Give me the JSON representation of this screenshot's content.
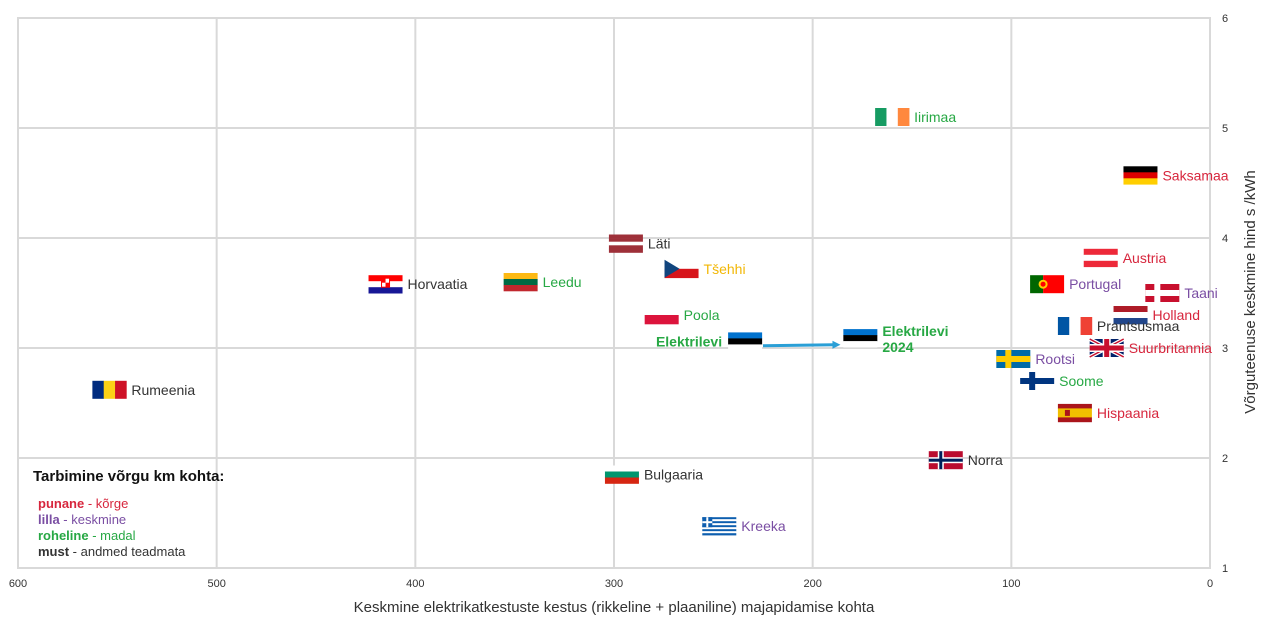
{
  "chart_data": {
    "type": "scatter",
    "title": "",
    "xlabel": "Keskmine elektrikatkestuste kestus (rikkeline + plaaniline) majapidamise kohta",
    "ylabel": "Võrguteenuse keskmine hind s /kWh",
    "xlim": [
      600,
      0
    ],
    "ylim": [
      1,
      6
    ],
    "x_reversed": true,
    "grid": true,
    "xticks": [
      600,
      500,
      400,
      300,
      200,
      100,
      0
    ],
    "yticks": [
      1,
      2,
      3,
      4,
      5,
      6
    ],
    "colors": {
      "punane": "#d7263d",
      "lilla": "#7a4ea3",
      "roheline": "#27a844",
      "must": "#333333",
      "arrow": "#2a9fd6"
    },
    "points": [
      {
        "label": "Iirimaa",
        "x": 160,
        "y": 5.1,
        "category": "roheline",
        "flag": "ireland"
      },
      {
        "label": "Saksamaa",
        "x": 35,
        "y": 4.57,
        "category": "punane",
        "flag": "germany"
      },
      {
        "label": "Läti",
        "x": 294,
        "y": 3.95,
        "category": "must",
        "flag": "latvia"
      },
      {
        "label": "Austria",
        "x": 55,
        "y": 3.82,
        "category": "punane",
        "flag": "austria"
      },
      {
        "label": "Tšehhi",
        "x": 266,
        "y": 3.72,
        "category": "kollane",
        "flag": "czech"
      },
      {
        "label": "Leedu",
        "x": 347,
        "y": 3.6,
        "category": "roheline",
        "flag": "lithuania"
      },
      {
        "label": "Horvaatia",
        "x": 415,
        "y": 3.58,
        "category": "must",
        "flag": "croatia"
      },
      {
        "label": "Portugal",
        "x": 82,
        "y": 3.58,
        "category": "lilla",
        "flag": "portugal"
      },
      {
        "label": "Taani",
        "x": 24,
        "y": 3.5,
        "category": "lilla",
        "flag": "denmark"
      },
      {
        "label": "Holland",
        "x": 40,
        "y": 3.3,
        "category": "punane",
        "flag": "netherlands"
      },
      {
        "label": "Poola",
        "x": 276,
        "y": 3.3,
        "category": "roheline",
        "flag": "poland"
      },
      {
        "label": "Prantsusmaa",
        "x": 68,
        "y": 3.2,
        "category": "must",
        "flag": "france"
      },
      {
        "label": "Elektrilevi",
        "x": 234,
        "y": 3.06,
        "category": "roheline",
        "flag": "estonia",
        "bold": true,
        "label_side": "left"
      },
      {
        "label": "Elektrilevi 2024",
        "x": 176,
        "y": 3.09,
        "category": "roheline",
        "flag": "estonia",
        "bold": true
      },
      {
        "label": "Suurbritannia",
        "x": 52,
        "y": 3.0,
        "category": "punane",
        "flag": "uk"
      },
      {
        "label": "Rootsi",
        "x": 99,
        "y": 2.9,
        "category": "lilla",
        "flag": "sweden"
      },
      {
        "label": "Soome",
        "x": 87,
        "y": 2.7,
        "category": "roheline",
        "flag": "finland"
      },
      {
        "label": "Rumeenia",
        "x": 554,
        "y": 2.62,
        "category": "must",
        "flag": "romania"
      },
      {
        "label": "Hispaania",
        "x": 68,
        "y": 2.41,
        "category": "punane",
        "flag": "spain"
      },
      {
        "label": "Norra",
        "x": 133,
        "y": 1.98,
        "category": "must",
        "flag": "norway"
      },
      {
        "label": "Bulgaaria",
        "x": 296,
        "y": 1.85,
        "category": "must",
        "flag": "bulgaria"
      },
      {
        "label": "Kreeka",
        "x": 247,
        "y": 1.38,
        "category": "lilla",
        "flag": "greece"
      }
    ],
    "arrow": {
      "from": [
        225,
        3.02
      ],
      "to": [
        186,
        3.02
      ]
    },
    "legend": {
      "title": "Tarbimine võrgu km kohta:",
      "entries": [
        {
          "key": "punane",
          "text": " - kõrge",
          "category": "punane"
        },
        {
          "key": "lilla",
          "text": " - keskmine",
          "category": "lilla"
        },
        {
          "key": "roheline",
          "text": " - madal",
          "category": "roheline"
        },
        {
          "key": "must",
          "text": " - andmed teadmata",
          "category": "must"
        }
      ]
    }
  }
}
